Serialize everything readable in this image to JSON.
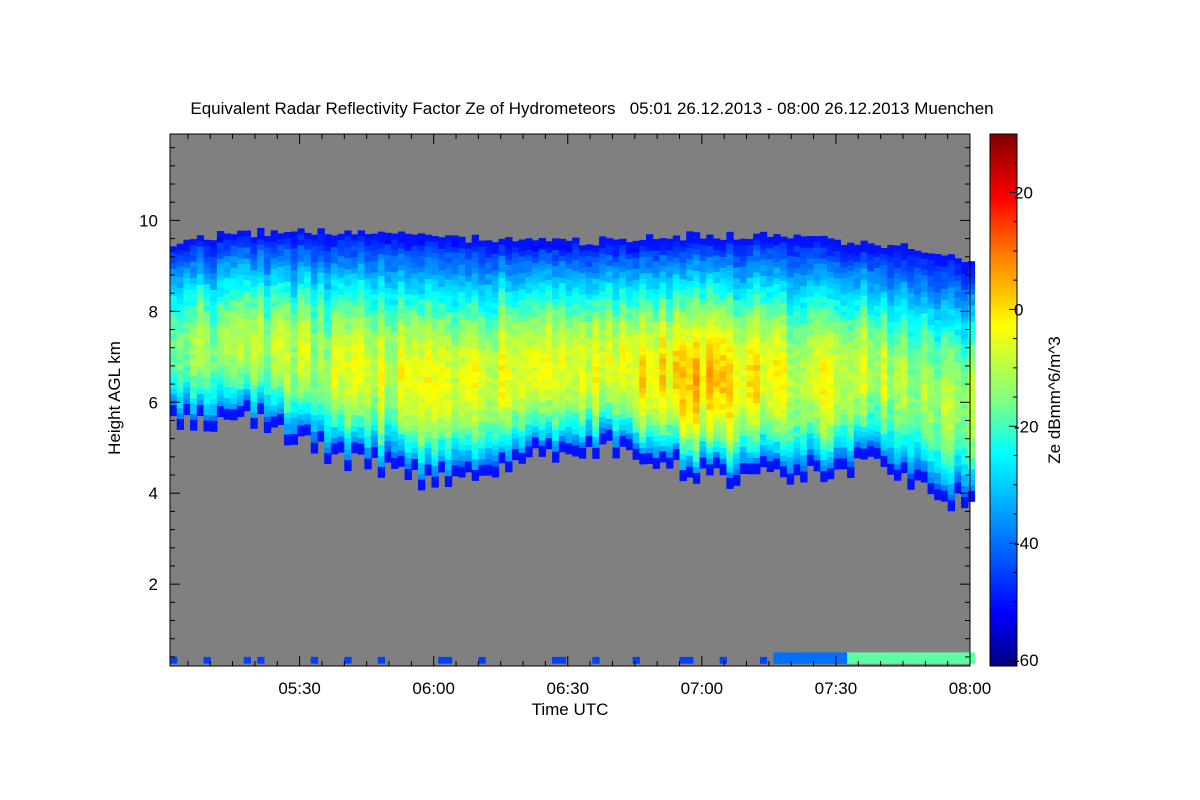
{
  "chart_data": {
    "type": "heatmap",
    "title": "Equivalent Radar Reflectivity Factor Ze of Hydrometeors   05:01 26.12.2013 - 08:00 26.12.2013 Muenchen",
    "xlabel": "Time UTC",
    "ylabel": "Height AGL km",
    "colorbar_label": "Ze dBmm^6/m^3",
    "x_range_minutes": [
      301,
      480
    ],
    "y_range_km": [
      0.2,
      11.9
    ],
    "colorbar_range": [
      -61,
      30
    ],
    "x_ticks": [
      {
        "value": 330,
        "label": "05:30"
      },
      {
        "value": 360,
        "label": "06:00"
      },
      {
        "value": 390,
        "label": "06:30"
      },
      {
        "value": 420,
        "label": "07:00"
      },
      {
        "value": 450,
        "label": "07:30"
      },
      {
        "value": 480,
        "label": "08:00"
      }
    ],
    "y_ticks": [
      {
        "value": 2,
        "label": "2"
      },
      {
        "value": 4,
        "label": "4"
      },
      {
        "value": 6,
        "label": "6"
      },
      {
        "value": 8,
        "label": "8"
      },
      {
        "value": 10,
        "label": "10"
      }
    ],
    "colorbar_ticks": [
      {
        "value": 20,
        "label": "20"
      },
      {
        "value": 0,
        "label": "0"
      },
      {
        "value": -20,
        "label": "-20"
      },
      {
        "value": -40,
        "label": "-40"
      },
      {
        "value": -60,
        "label": "-60"
      }
    ],
    "colormap": [
      "#00007f",
      "#0000ff",
      "#0080ff",
      "#00ffff",
      "#80ff80",
      "#ffff00",
      "#ff8000",
      "#ff0000",
      "#7f0000"
    ],
    "background_color": "#808080",
    "cloud_layer": {
      "description_points_time_min": [
        301,
        320,
        340,
        360,
        380,
        400,
        420,
        440,
        460,
        480
      ],
      "top_km": [
        9.5,
        9.7,
        9.7,
        9.6,
        9.5,
        9.5,
        9.6,
        9.6,
        9.4,
        9.1
      ],
      "base_km": [
        5.5,
        5.6,
        4.7,
        4.2,
        4.8,
        5.0,
        4.3,
        4.4,
        4.6,
        3.6
      ],
      "peak_ze_dbz": [
        -15,
        -12,
        -8,
        -6,
        -5,
        -4,
        2,
        -6,
        -10,
        -14
      ]
    }
  }
}
